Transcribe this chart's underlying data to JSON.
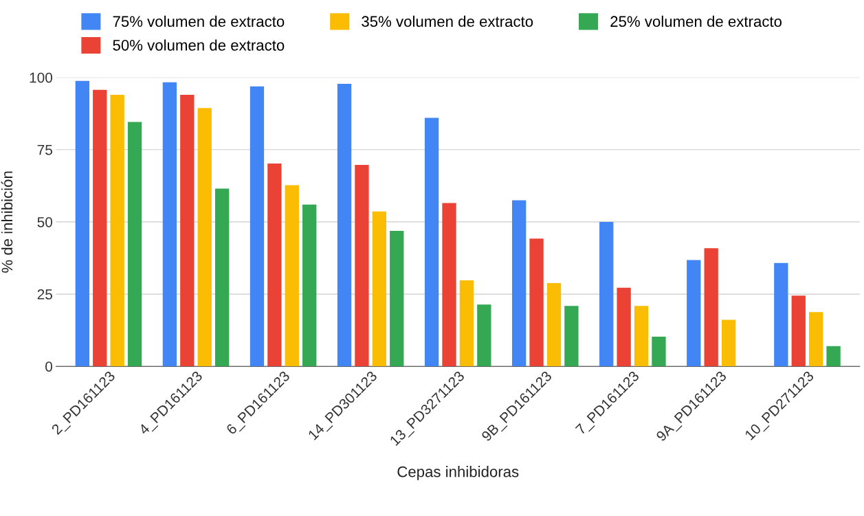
{
  "chart_data": {
    "type": "bar",
    "xlabel": "Cepas inhibidoras",
    "ylabel": "% de inhibición",
    "categories": [
      "2_PD161123",
      "4_PD161123",
      "6_PD161123",
      "14_PD301123",
      "13_PD3271123",
      "9B_PD161123",
      "7_PD161123",
      "9A_PD161123",
      "10_PD271123"
    ],
    "series": [
      {
        "name": "75% volumen de extracto",
        "color": "#4285f4",
        "values": [
          98.8,
          98.3,
          96.9,
          97.8,
          86,
          57.5,
          50,
          36.8,
          35.8
        ]
      },
      {
        "name": "50% volumen de extracto",
        "color": "#ea4335",
        "values": [
          95.7,
          94,
          70.2,
          69.7,
          56.5,
          44.2,
          27.2,
          40.9,
          24.5
        ]
      },
      {
        "name": "35% volumen de extracto",
        "color": "#fbbc04",
        "values": [
          94,
          89.4,
          62.7,
          53.6,
          29.8,
          28.8,
          20.9,
          16.1,
          18.8
        ]
      },
      {
        "name": "25% volumen de extracto",
        "color": "#34a853",
        "values": [
          84.6,
          61.5,
          56,
          46.9,
          21.4,
          20.9,
          10.3,
          null,
          7
        ]
      }
    ],
    "ylim": [
      0,
      100
    ],
    "yticks": [
      0,
      25,
      50,
      75,
      100
    ],
    "grid": "y",
    "legend": "top"
  }
}
